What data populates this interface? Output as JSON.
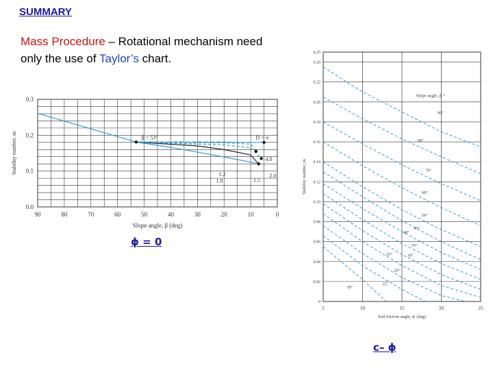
{
  "summary_title": "SUMMARY",
  "description": {
    "part1": "Mass Procedure",
    "part2": " – Rotational mechanism need only the use of ",
    "part3": "Taylor’s",
    "part4": " chart."
  },
  "captions": {
    "phi_zero": "ϕ = 0",
    "c_phi": "c– ϕ"
  },
  "colors": {
    "accent_red": "#cc1111",
    "accent_blue": "#2244cc",
    "curve_blue": "#2e9bd6",
    "grid": "#333333"
  },
  "chart_data": [
    {
      "type": "line",
      "xlabel": "Slope angle, β (deg)",
      "ylabel": "Stability number, m",
      "xlim": [
        90,
        0
      ],
      "ylim": [
        0,
        0.3
      ],
      "x_ticks": [
        "90",
        "80",
        "70",
        "60",
        "50",
        "40",
        "30",
        "20",
        "10",
        "0"
      ],
      "y_ticks": [
        "0.0",
        "0.1",
        "0.2",
        "0.3"
      ],
      "annotations": [
        "β = 53°",
        "D = ∞",
        "4.0",
        "2.0",
        "1.5",
        "1.2",
        "1.0"
      ],
      "series": [
        {
          "x": [
            90,
            53,
            40,
            30,
            20,
            10,
            7
          ],
          "y": [
            0.261,
            0.181,
            0.166,
            0.153,
            0.139,
            0.125,
            0.12
          ]
        },
        {
          "x": [
            53,
            30,
            20,
            10,
            7
          ],
          "y": [
            0.181,
            0.17,
            0.16,
            0.145,
            0.12
          ]
        },
        {
          "x": [
            53,
            30,
            20,
            10,
            6
          ],
          "y": [
            0.181,
            0.175,
            0.173,
            0.165,
            0.135
          ]
        },
        {
          "x": [
            53,
            30,
            20,
            10,
            8
          ],
          "y": [
            0.181,
            0.179,
            0.179,
            0.175,
            0.155
          ]
        },
        {
          "x": [
            53,
            30,
            20,
            10,
            5
          ],
          "y": [
            0.181,
            0.181,
            0.181,
            0.18,
            0.18
          ]
        }
      ]
    },
    {
      "type": "line",
      "xlabel": "Soil friction angle, ϕ' (deg)",
      "ylabel": "Stability number, m",
      "xlim": [
        5,
        25
      ],
      "ylim": [
        0,
        0.25
      ],
      "x_ticks": [
        "5",
        "10",
        "15",
        "20",
        "25"
      ],
      "y_ticks": [
        "0",
        "0.02",
        "0.04",
        "0.06",
        "0.08",
        "0.10",
        "0.12",
        "0.14",
        "0.16",
        "0.18",
        "0.20",
        "0.22",
        "0.24",
        "0.25"
      ],
      "legend_title": "Slope angle, β =",
      "series": [
        {
          "name": "90°",
          "x": [
            5,
            10,
            15,
            20,
            25
          ],
          "y": [
            0.235,
            0.21,
            0.19,
            0.17,
            0.155
          ]
        },
        {
          "name": "80°",
          "x": [
            5,
            10,
            15,
            20,
            25
          ],
          "y": [
            0.205,
            0.183,
            0.163,
            0.145,
            0.128
          ]
        },
        {
          "name": "70°",
          "x": [
            5,
            10,
            15,
            20,
            25
          ],
          "y": [
            0.18,
            0.158,
            0.137,
            0.118,
            0.101
          ]
        },
        {
          "name": "60°",
          "x": [
            5,
            10,
            15,
            20,
            25
          ],
          "y": [
            0.16,
            0.136,
            0.114,
            0.094,
            0.076
          ]
        },
        {
          "name": "50°",
          "x": [
            5,
            10,
            15,
            20,
            25
          ],
          "y": [
            0.14,
            0.115,
            0.092,
            0.072,
            0.055
          ]
        },
        {
          "name": "45°",
          "x": [
            5,
            10,
            15,
            20,
            25
          ],
          "y": [
            0.13,
            0.105,
            0.081,
            0.06,
            0.042
          ]
        },
        {
          "name": "40°",
          "x": [
            5,
            10,
            15,
            20,
            25
          ],
          "y": [
            0.118,
            0.093,
            0.07,
            0.049,
            0.032
          ]
        },
        {
          "name": "35°",
          "x": [
            5,
            10,
            15,
            20,
            25
          ],
          "y": [
            0.108,
            0.082,
            0.058,
            0.038,
            0.022
          ]
        },
        {
          "name": "30°",
          "x": [
            5,
            10,
            15,
            20,
            25
          ],
          "y": [
            0.098,
            0.071,
            0.047,
            0.027,
            0.012
          ]
        },
        {
          "name": "25°",
          "x": [
            5,
            10,
            15,
            20,
            25
          ],
          "y": [
            0.088,
            0.06,
            0.036,
            0.016,
            0.004
          ]
        },
        {
          "name": "20°",
          "x": [
            5,
            10,
            15,
            20,
            23
          ],
          "y": [
            0.076,
            0.048,
            0.024,
            0.006,
            0.0
          ]
        },
        {
          "name": "15°",
          "x": [
            5,
            10,
            15,
            18
          ],
          "y": [
            0.066,
            0.036,
            0.012,
            0.0
          ]
        },
        {
          "name": "10°",
          "x": [
            5,
            10,
            13
          ],
          "y": [
            0.055,
            0.022,
            0.0
          ]
        }
      ]
    }
  ]
}
